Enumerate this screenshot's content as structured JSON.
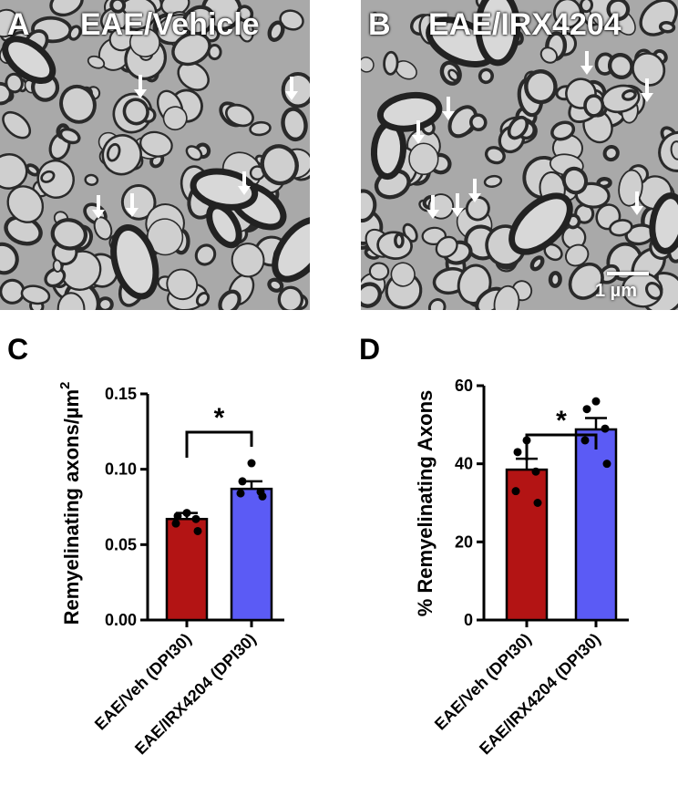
{
  "panel_a": {
    "letter": "A",
    "title": "EAE/Vehicle"
  },
  "panel_b": {
    "letter": "B",
    "title": "EAE/IRX4204",
    "scale_bar": "1 µm"
  },
  "colors": {
    "vehicle": "#b31414",
    "irx4204": "#5b5bf5"
  },
  "chart_data": [
    {
      "panel": "C",
      "type": "bar",
      "ylabel_main": "Remyelinating axons/µm",
      "ylabel_sup": "2",
      "categories": [
        "EAE/Veh (DPI30)",
        "EAE/IRX4204 (DPI30)"
      ],
      "values": [
        0.067,
        0.087
      ],
      "errors": [
        0.004,
        0.005
      ],
      "points": [
        [
          0.071,
          0.069,
          0.067,
          0.064,
          0.059
        ],
        [
          0.104,
          0.092,
          0.085,
          0.084,
          0.082
        ]
      ],
      "ylim": [
        0,
        0.15
      ],
      "yticks": [
        "0.00",
        "0.05",
        "0.10",
        "0.15"
      ],
      "significance": "*"
    },
    {
      "panel": "D",
      "type": "bar",
      "ylabel_main": "% Remyelinating Axons",
      "categories": [
        "EAE/Veh (DPI30)",
        "EAE/IRX4204 (DPI30)"
      ],
      "values": [
        38.5,
        48.8
      ],
      "errors": [
        2.8,
        2.9
      ],
      "points": [
        [
          46,
          43,
          38,
          33,
          30
        ],
        [
          56,
          54,
          49,
          46,
          40
        ]
      ],
      "ylim": [
        0,
        60
      ],
      "yticks": [
        "0",
        "20",
        "40",
        "60"
      ],
      "significance": "*"
    }
  ]
}
